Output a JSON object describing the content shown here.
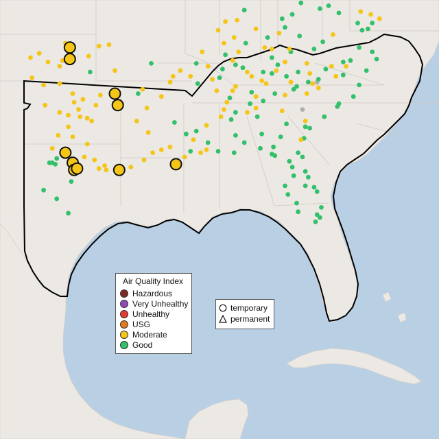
{
  "legend": {
    "title": "Air Quality Index",
    "categories": [
      {
        "label": "Hazardous",
        "color": "#7e2a24"
      },
      {
        "label": "Very Unhealthy",
        "color": "#8f4bb5"
      },
      {
        "label": "Unhealthy",
        "color": "#e53a2f"
      },
      {
        "label": "USG",
        "color": "#e37a1b"
      },
      {
        "label": "Moderate",
        "color": "#f5c518"
      },
      {
        "label": "Good",
        "color": "#33c06b"
      }
    ]
  },
  "monitor_types": {
    "items": [
      {
        "label": "temporary",
        "symbol": "circle-icon"
      },
      {
        "label": "permanent",
        "symbol": "triangle-icon"
      }
    ]
  },
  "colors": {
    "water": "#b9cfe4",
    "land": "#ece8e4",
    "region_outline": "#000000",
    "border": "#bfbcb8",
    "disabled_station": "#b0b0b0"
  },
  "stations": {
    "moderate": [
      [
        37.9,
        -97.7
      ],
      [
        36.8,
        -97.4
      ],
      [
        37.0,
        -96.1
      ],
      [
        37.7,
        -95.4
      ],
      [
        37.8,
        -94.7
      ],
      [
        37.2,
        -99.5
      ],
      [
        36.6,
        -98.9
      ],
      [
        36.9,
        -100.1
      ],
      [
        36.3,
        -98.1
      ],
      [
        36.7,
        -97.9
      ],
      [
        36.0,
        -94.3
      ],
      [
        35.5,
        -100.0
      ],
      [
        35.0,
        -99.2
      ],
      [
        35.1,
        -98.1
      ],
      [
        34.4,
        -97.2
      ],
      [
        34.0,
        -96.5
      ],
      [
        33.8,
        -97.1
      ],
      [
        34.3,
        -95.3
      ],
      [
        33.6,
        -95.6
      ],
      [
        33.3,
        -96.8
      ],
      [
        33.1,
        -98.1
      ],
      [
        33.6,
        -99.1
      ],
      [
        32.9,
        -97.5
      ],
      [
        32.8,
        -96.7
      ],
      [
        32.7,
        -96.2
      ],
      [
        32.5,
        -95.9
      ],
      [
        32.1,
        -97.5
      ],
      [
        31.5,
        -98.2
      ],
      [
        31.4,
        -97.2
      ],
      [
        30.9,
        -96.2
      ],
      [
        30.3,
        -97.8
      ],
      [
        30.6,
        -98.6
      ],
      [
        30.0,
        -96.4
      ],
      [
        29.8,
        -95.7
      ],
      [
        29.4,
        -95.0
      ],
      [
        29.2,
        -95.4
      ],
      [
        29.1,
        -94.9
      ],
      [
        29.3,
        -93.2
      ],
      [
        29.8,
        -92.3
      ],
      [
        30.5,
        -91.1
      ],
      [
        30.3,
        -91.7
      ],
      [
        30.0,
        -89.5
      ],
      [
        30.3,
        -88.4
      ],
      [
        30.5,
        -88.0
      ],
      [
        31.7,
        -92.0
      ],
      [
        32.5,
        -92.8
      ],
      [
        33.4,
        -92.1
      ],
      [
        34.2,
        -91.1
      ],
      [
        34.7,
        -92.4
      ],
      [
        35.2,
        -90.5
      ],
      [
        35.6,
        -90.3
      ],
      [
        35.6,
        -89.1
      ],
      [
        36.0,
        -89.8
      ],
      [
        35.4,
        -87.6
      ],
      [
        34.9,
        -86.0
      ],
      [
        34.6,
        -86.2
      ],
      [
        33.8,
        -86.6
      ],
      [
        33.3,
        -86.8
      ],
      [
        32.8,
        -87.0
      ],
      [
        32.2,
        -88.0
      ],
      [
        31.2,
        -88.9
      ],
      [
        30.7,
        -90.5
      ],
      [
        34.6,
        -87.3
      ],
      [
        35.3,
        -84.2
      ],
      [
        35.9,
        -85.2
      ],
      [
        36.7,
        -86.2
      ],
      [
        37.3,
        -85.8
      ],
      [
        37.9,
        -86.8
      ],
      [
        38.3,
        -86.1
      ],
      [
        38.8,
        -87.2
      ],
      [
        39.5,
        -85.9
      ],
      [
        39.4,
        -86.7
      ],
      [
        38.9,
        -84.6
      ],
      [
        37.6,
        -84.0
      ],
      [
        37.5,
        -82.3
      ],
      [
        36.5,
        -81.1
      ],
      [
        36.3,
        -79.4
      ],
      [
        36.3,
        -78.4
      ],
      [
        35.8,
        -80.9
      ],
      [
        35.1,
        -80.7
      ],
      [
        34.8,
        -80.3
      ],
      [
        35.1,
        -83.9
      ],
      [
        34.2,
        -84.6
      ],
      [
        33.4,
        -84.6
      ],
      [
        33.2,
        -82.8
      ],
      [
        32.5,
        -81.2
      ],
      [
        40.1,
        -77.4
      ],
      [
        39.9,
        -76.7
      ],
      [
        39.6,
        -76.1
      ],
      [
        38.5,
        -79.3
      ],
      [
        38.6,
        -83.0
      ],
      [
        36.6,
        -82.6
      ],
      [
        37.5,
        -83.5
      ],
      [
        35.6,
        -84.9
      ],
      [
        36.0,
        -83.2
      ],
      [
        31.2,
        -81.5
      ],
      [
        34.4,
        -81.1
      ],
      [
        35.6,
        -79.1
      ],
      [
        37.3,
        -88.3
      ],
      [
        36.3,
        -87.9
      ],
      [
        33.1,
        -85.2
      ],
      [
        34.3,
        -82.6
      ],
      [
        35.2,
        -82.2
      ]
    ],
    "good": [
      [
        35.9,
        -96.0
      ],
      [
        34.4,
        -92.7
      ],
      [
        36.5,
        -91.8
      ],
      [
        36.5,
        -88.7
      ],
      [
        35.1,
        -88.6
      ],
      [
        36.1,
        -86.9
      ],
      [
        36.4,
        -86.0
      ],
      [
        36.2,
        -85.5
      ],
      [
        37.1,
        -86.7
      ],
      [
        37.9,
        -85.3
      ],
      [
        38.3,
        -83.8
      ],
      [
        37.5,
        -80.6
      ],
      [
        38.0,
        -80.0
      ],
      [
        36.9,
        -83.5
      ],
      [
        37.3,
        -82.2
      ],
      [
        35.9,
        -84.1
      ],
      [
        35.8,
        -83.5
      ],
      [
        35.6,
        -82.5
      ],
      [
        35.2,
        -81.0
      ],
      [
        34.7,
        -82.0
      ],
      [
        34.4,
        -83.3
      ],
      [
        33.9,
        -84.1
      ],
      [
        33.7,
        -85.0
      ],
      [
        32.8,
        -84.5
      ],
      [
        32.3,
        -82.5
      ],
      [
        31.6,
        -84.2
      ],
      [
        31.3,
        -81.3
      ],
      [
        32.0,
        -80.9
      ],
      [
        32.8,
        -79.9
      ],
      [
        33.7,
        -78.9
      ],
      [
        34.2,
        -77.9
      ],
      [
        35.0,
        -77.5
      ],
      [
        35.7,
        -78.6
      ],
      [
        36.0,
        -77.0
      ],
      [
        36.8,
        -76.3
      ],
      [
        37.3,
        -76.6
      ],
      [
        37.6,
        -77.5
      ],
      [
        38.8,
        -77.3
      ],
      [
        39.3,
        -76.6
      ],
      [
        40.0,
        -78.9
      ],
      [
        40.5,
        -79.6
      ],
      [
        40.3,
        -80.2
      ],
      [
        40.7,
        -81.5
      ],
      [
        39.9,
        -82.1
      ],
      [
        39.0,
        -82.6
      ],
      [
        38.4,
        -81.6
      ],
      [
        36.4,
        -83.1
      ],
      [
        35.5,
        -87.1
      ],
      [
        34.1,
        -86.4
      ],
      [
        33.1,
        -86.0
      ],
      [
        32.6,
        -86.3
      ],
      [
        31.5,
        -86.0
      ],
      [
        31.0,
        -85.4
      ],
      [
        30.3,
        -86.1
      ],
      [
        30.4,
        -87.2
      ],
      [
        30.6,
        -84.3
      ],
      [
        30.2,
        -83.5
      ],
      [
        29.7,
        -82.3
      ],
      [
        29.0,
        -81.2
      ],
      [
        28.6,
        -81.0
      ],
      [
        28.0,
        -82.6
      ],
      [
        27.4,
        -82.4
      ],
      [
        26.8,
        -81.8
      ],
      [
        26.5,
        -80.1
      ],
      [
        26.0,
        -80.4
      ],
      [
        25.8,
        -80.2
      ],
      [
        25.5,
        -80.5
      ],
      [
        26.2,
        -81.7
      ],
      [
        27.9,
        -80.6
      ],
      [
        30.3,
        -81.7
      ],
      [
        30.0,
        -81.4
      ],
      [
        29.3,
        -82.1
      ],
      [
        28.0,
        -81.2
      ],
      [
        27.6,
        -80.4
      ],
      [
        28.7,
        -82.0
      ],
      [
        30.1,
        -83.3
      ],
      [
        30.7,
        -83.4
      ],
      [
        31.6,
        -89.4
      ],
      [
        31.0,
        -87.9
      ],
      [
        31.4,
        -82.9
      ],
      [
        32.1,
        -81.2
      ],
      [
        33.5,
        -79.0
      ],
      [
        34.9,
        -81.8
      ],
      [
        35.4,
        -80.3
      ],
      [
        35.9,
        -81.7
      ],
      [
        34.5,
        -84.9
      ],
      [
        36.1,
        -79.8
      ],
      [
        36.7,
        -78.1
      ],
      [
        39.6,
        -82.8
      ],
      [
        40.2,
        -85.4
      ],
      [
        28.3,
        -97.3
      ],
      [
        26.1,
        -97.5
      ],
      [
        27.7,
        -99.2
      ],
      [
        27.1,
        -98.3
      ],
      [
        29.9,
        -98.3
      ],
      [
        29.6,
        -98.6
      ],
      [
        29.5,
        -98.4
      ],
      [
        29.6,
        -98.8
      ],
      [
        31.8,
        -88.7
      ],
      [
        32.4,
        -90.2
      ],
      [
        30.4,
        -89.1
      ],
      [
        36.6,
        -78.6
      ],
      [
        38.9,
        -76.9
      ],
      [
        39.3,
        -77.6
      ]
    ],
    "big_moderate": [
      [
        37.6,
        -97.4
      ],
      [
        36.8,
        -97.4
      ],
      [
        34.4,
        -94.3
      ],
      [
        33.6,
        -94.1
      ],
      [
        30.3,
        -97.7
      ],
      [
        29.6,
        -97.2
      ],
      [
        29.1,
        -97.1
      ],
      [
        29.2,
        -96.9
      ],
      [
        29.1,
        -94.0
      ],
      [
        29.5,
        -90.1
      ]
    ],
    "gray": [
      [
        35.2,
        -80.4
      ],
      [
        33.3,
        -81.4
      ]
    ]
  }
}
